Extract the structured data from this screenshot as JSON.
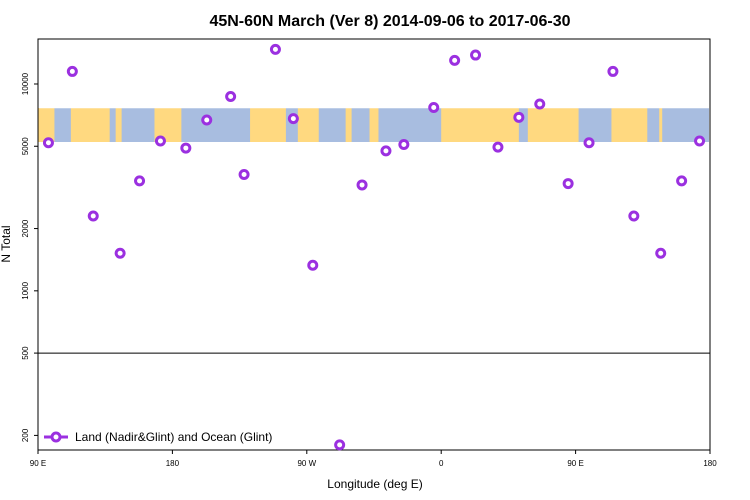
{
  "chart_data": {
    "type": "scatter",
    "title": "45N-60N March (Ver 8)   2014-09-06 to 2017-06-30",
    "xlabel": "Longitude (deg E)",
    "ylabel": "N Total",
    "x_ticks": [
      {
        "value": 90,
        "label": "90 E"
      },
      {
        "value": 180,
        "label": "180"
      },
      {
        "value": 270,
        "label": "90 W"
      },
      {
        "value": 360,
        "label": "0"
      },
      {
        "value": 450,
        "label": "90 E"
      },
      {
        "value": 540,
        "label": "180"
      }
    ],
    "xlim": [
      90,
      540
    ],
    "y_scale": "log",
    "y_ticks": [
      200,
      500,
      1000,
      2000,
      5000,
      10000
    ],
    "ylim": [
      170,
      16500
    ],
    "reference_line_y": 500,
    "map_band": {
      "lat_south": 45,
      "lat_north": 60,
      "land_color": "#ffd980",
      "ocean_color": "#a8bde0"
    },
    "series": [
      {
        "name": "Land (Nadir&Glint) and Ocean (Glint)",
        "color": "#9b30e0",
        "points": [
          {
            "x": 97,
            "y": 5200
          },
          {
            "x": 113,
            "y": 11500
          },
          {
            "x": 127,
            "y": 2300
          },
          {
            "x": 145,
            "y": 1520
          },
          {
            "x": 158,
            "y": 3400
          },
          {
            "x": 172,
            "y": 5300
          },
          {
            "x": 189,
            "y": 4900
          },
          {
            "x": 203,
            "y": 6700
          },
          {
            "x": 219,
            "y": 8700
          },
          {
            "x": 228,
            "y": 3650
          },
          {
            "x": 249,
            "y": 14700
          },
          {
            "x": 261,
            "y": 6800
          },
          {
            "x": 274,
            "y": 1330
          },
          {
            "x": 292,
            "y": 180
          },
          {
            "x": 307,
            "y": 3250
          },
          {
            "x": 323,
            "y": 4750
          },
          {
            "x": 335,
            "y": 5100
          },
          {
            "x": 355,
            "y": 7700
          },
          {
            "x": 369,
            "y": 13000
          },
          {
            "x": 383,
            "y": 13800
          },
          {
            "x": 398,
            "y": 4950
          },
          {
            "x": 412,
            "y": 6900
          },
          {
            "x": 426,
            "y": 8000
          },
          {
            "x": 445,
            "y": 3300
          },
          {
            "x": 459,
            "y": 5200
          },
          {
            "x": 475,
            "y": 11500
          },
          {
            "x": 489,
            "y": 2300
          },
          {
            "x": 507,
            "y": 1520
          },
          {
            "x": 521,
            "y": 3400
          },
          {
            "x": 533,
            "y": 5300
          }
        ]
      }
    ],
    "legend": {
      "position": "bottom-left"
    }
  }
}
